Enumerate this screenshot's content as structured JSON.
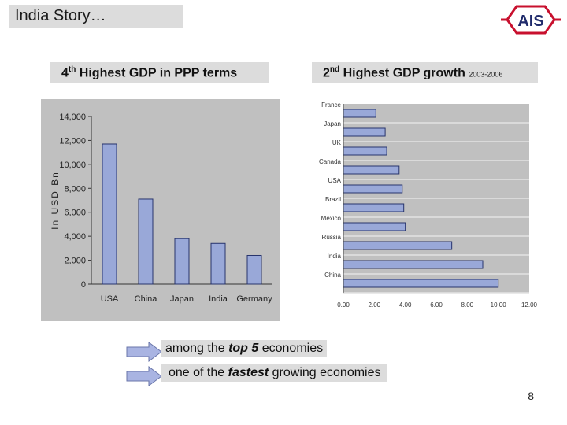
{
  "slide": {
    "title": "India Story…",
    "logo_text": "AIS",
    "label_left": {
      "sup": "th",
      "num": "4",
      "text": " Highest GDP in PPP terms"
    },
    "label_right": {
      "num": "2",
      "sup": "nd",
      "text": " Highest GDP growth ",
      "period": "2003-2006"
    },
    "note1": {
      "pre": "among the ",
      "em": "top 5",
      "post": " economies"
    },
    "note2": {
      "pre": "one of the ",
      "em": "fastest",
      "post": " growing economies"
    },
    "page_number": "8",
    "colors": {
      "bar": "#99a8d8",
      "bar_edge": "#27336b",
      "plot_bg": "#c0c0c0",
      "box": "#dcdcdc",
      "arrow": "#a9b4e2"
    }
  },
  "chart_data": [
    {
      "type": "bar",
      "title": "4th Highest GDP in PPP terms",
      "categories": [
        "USA",
        "China",
        "Japan",
        "India",
        "Germany"
      ],
      "values": [
        11700,
        7100,
        3800,
        3400,
        2400
      ],
      "ylabel": "In USD Bn",
      "ylim": [
        0,
        14000
      ],
      "yticks": [
        0,
        2000,
        4000,
        6000,
        8000,
        10000,
        12000,
        14000
      ],
      "ytick_labels": [
        "0",
        "2,000",
        "4,000",
        "6,000",
        "8,000",
        "10,000",
        "12,000",
        "14,000"
      ]
    },
    {
      "type": "bar",
      "orientation": "horizontal",
      "title": "2nd Highest GDP growth 2003-2006",
      "categories": [
        "France",
        "Japan",
        "UK",
        "Canada",
        "USA",
        "Brazil",
        "Mexico",
        "Russia",
        "India",
        "China"
      ],
      "values": [
        2.1,
        2.7,
        2.8,
        3.6,
        3.8,
        3.9,
        4.0,
        7.0,
        9.0,
        10.0
      ],
      "xlim": [
        0,
        12
      ],
      "xticks": [
        0,
        2,
        4,
        6,
        8,
        10,
        12
      ],
      "xtick_labels": [
        "0.00",
        "2.00",
        "4.00",
        "6.00",
        "8.00",
        "10.00",
        "12.00"
      ]
    }
  ]
}
